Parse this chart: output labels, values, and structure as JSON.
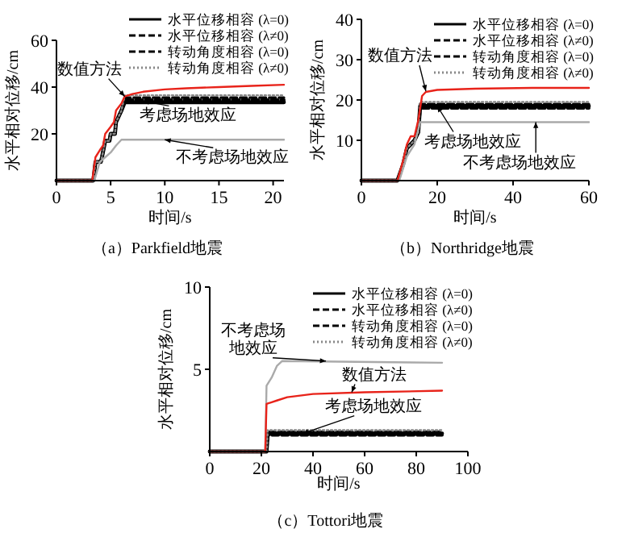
{
  "chart_data": [
    {
      "type": "line",
      "title": "（a）Parkfield地震",
      "xlabel": "时间/s",
      "ylabel": "水平相对位移/cm",
      "xlim": [
        0,
        21
      ],
      "xticks": [
        0,
        5,
        10,
        15,
        20
      ],
      "ylim": [
        0,
        60
      ],
      "yticks": [
        20,
        40,
        60
      ],
      "legend": "top right",
      "series": [
        {
          "name": "水平位移相容 (λ=0)",
          "color": "#000000",
          "line_style": "solid",
          "x": [
            0,
            3.4,
            3.6,
            4.1,
            4.2,
            4.5,
            4.9,
            5.0,
            5.4,
            5.5,
            6.0,
            6.3,
            21
          ],
          "values": [
            0,
            0,
            8,
            8,
            10,
            17,
            17,
            20,
            20,
            25,
            30,
            33.5,
            33.5
          ]
        },
        {
          "name": "水平位移相容 (λ≠0)",
          "color": "#000000",
          "line_style": "dashed",
          "x": [
            0,
            3.4,
            3.6,
            4.1,
            4.2,
            4.5,
            4.9,
            5.0,
            5.4,
            5.5,
            6.0,
            6.3,
            21
          ],
          "values": [
            0,
            0,
            8,
            8,
            10,
            17,
            17,
            20,
            20,
            25,
            30,
            34.5,
            34.5
          ]
        },
        {
          "name": "转动角度相容 (λ=0)",
          "color": "#000000",
          "line_style": "dashed",
          "x": [
            0,
            3.4,
            3.6,
            4.1,
            4.2,
            4.5,
            4.9,
            5.0,
            5.4,
            5.5,
            6.0,
            6.3,
            21
          ],
          "values": [
            0,
            0,
            8,
            8,
            10,
            17,
            17,
            20,
            20,
            25,
            30,
            35.5,
            35.5
          ]
        },
        {
          "name": "转动角度相容 (λ≠0)",
          "color": "#888888",
          "line_style": "dotted",
          "x": [
            0,
            3.4,
            3.6,
            4.1,
            4.2,
            4.5,
            4.9,
            5.0,
            5.4,
            5.5,
            6.0,
            6.3,
            21
          ],
          "values": [
            0,
            0,
            8,
            8,
            10,
            17,
            17,
            20,
            20,
            25,
            30,
            36.5,
            36.5
          ]
        },
        {
          "color": "#aaaaaa",
          "line_style": "solid",
          "x": [
            0,
            3.5,
            4,
            4.5,
            5,
            5.5,
            6,
            21
          ],
          "values": [
            0,
            0,
            8,
            10,
            12,
            15,
            17.5,
            17.5
          ]
        },
        {
          "color": "#e8231a",
          "line_style": "solid",
          "x": [
            0,
            3.3,
            3.6,
            4,
            4.3,
            4.5,
            5,
            5.3,
            5.5,
            6,
            6.3,
            7,
            8,
            10,
            12,
            15,
            18,
            21
          ],
          "values": [
            0,
            0,
            10,
            13,
            15,
            20,
            23,
            25,
            30,
            33,
            36,
            37,
            38,
            39,
            39.5,
            40,
            40.5,
            41
          ]
        }
      ],
      "annotations": [
        {
          "text": "数值方法",
          "x": 6.3,
          "y": 36
        },
        {
          "text": "考虑场地效应",
          "x": 8,
          "y": 34
        },
        {
          "text": "不考虑场地效应",
          "x": 10,
          "y": 17.5
        }
      ]
    },
    {
      "type": "line",
      "title": "（b）Northridge地震",
      "xlabel": "时间/s",
      "ylabel": "水平相对位移/cm",
      "xlim": [
        0,
        60
      ],
      "xticks": [
        0,
        20,
        40,
        60
      ],
      "ylim": [
        0,
        40
      ],
      "yticks": [
        10,
        20,
        30,
        40
      ],
      "legend": "top right",
      "series": [
        {
          "name": "水平位移相容 (λ=0)",
          "color": "#000000",
          "line_style": "solid",
          "x": [
            0,
            9.5,
            11,
            12,
            13,
            14,
            15,
            15.5,
            60
          ],
          "values": [
            0,
            0,
            4,
            8,
            9,
            10,
            12,
            18.5,
            18.5
          ]
        },
        {
          "name": "水平位移相容 (λ≠0)",
          "color": "#000000",
          "line_style": "dashed",
          "x": [
            0,
            9.5,
            11,
            12,
            13,
            14,
            15,
            15.5,
            60
          ],
          "values": [
            0,
            0,
            4,
            8,
            9,
            10,
            12,
            18,
            18
          ]
        },
        {
          "name": "转动角度相容 (λ=0)",
          "color": "#000000",
          "line_style": "dashed",
          "x": [
            0,
            9.5,
            11,
            12,
            13,
            14,
            15,
            15.5,
            60
          ],
          "values": [
            0,
            0,
            4,
            8,
            9,
            10,
            12,
            19,
            19
          ]
        },
        {
          "name": "转动角度相容 (λ≠0)",
          "color": "#888888",
          "line_style": "dotted",
          "x": [
            0,
            9.5,
            11,
            12,
            13,
            14,
            15,
            15.5,
            60
          ],
          "values": [
            0,
            0,
            4,
            8,
            9,
            10,
            12,
            19.5,
            19.5
          ]
        },
        {
          "color": "#aaaaaa",
          "line_style": "solid",
          "x": [
            0,
            10,
            12,
            14,
            15.5,
            60
          ],
          "values": [
            0,
            0,
            6,
            9,
            14.5,
            14.5
          ]
        },
        {
          "color": "#e8231a",
          "line_style": "solid",
          "x": [
            0,
            9.5,
            11,
            12,
            13,
            14,
            15,
            16,
            17,
            20,
            30,
            45,
            60
          ],
          "values": [
            0,
            0,
            5,
            9,
            11,
            11,
            15,
            21,
            22,
            22.5,
            22.8,
            23,
            23
          ]
        }
      ],
      "annotations": [
        {
          "text": "数值方法",
          "x": 17,
          "y": 22.2
        },
        {
          "text": "考虑场地效应",
          "x": 20,
          "y": 18.5
        },
        {
          "text": "不考虑场地效应",
          "x": 46,
          "y": 14.5
        }
      ]
    },
    {
      "type": "line",
      "title": "（c）Tottori地震",
      "xlabel": "时间/s",
      "ylabel": "水平相对位移/cm",
      "xlim": [
        0,
        100
      ],
      "xticks": [
        0,
        20,
        40,
        60,
        80,
        100
      ],
      "ylim": [
        0,
        10
      ],
      "yticks": [
        5,
        10
      ],
      "legend": "top right",
      "series": [
        {
          "name": "水平位移相容 (λ=0)",
          "color": "#000000",
          "line_style": "solid",
          "x": [
            0,
            22,
            22.5,
            90
          ],
          "values": [
            0,
            0,
            1.1,
            1.1
          ]
        },
        {
          "name": "水平位移相容 (λ≠0)",
          "color": "#000000",
          "line_style": "dashed",
          "x": [
            0,
            22,
            22.5,
            90
          ],
          "values": [
            0,
            0,
            1.0,
            1.0
          ]
        },
        {
          "name": "转动角度相容 (λ=0)",
          "color": "#000000",
          "line_style": "dashed",
          "x": [
            0,
            22,
            22.5,
            90
          ],
          "values": [
            0,
            0,
            1.2,
            1.2
          ]
        },
        {
          "name": "转动角度相容 (λ≠0)",
          "color": "#888888",
          "line_style": "dotted",
          "x": [
            0,
            22,
            22.5,
            90
          ],
          "values": [
            0,
            0,
            1.3,
            1.3
          ]
        },
        {
          "color": "#aaaaaa",
          "line_style": "solid",
          "x": [
            0,
            21.5,
            22,
            24,
            26,
            28,
            90
          ],
          "values": [
            0,
            0,
            4,
            4.5,
            5.2,
            5.5,
            5.4
          ]
        },
        {
          "color": "#e8231a",
          "line_style": "solid",
          "x": [
            0,
            21.5,
            22,
            24,
            26,
            30,
            40,
            60,
            90
          ],
          "values": [
            0,
            0,
            2.9,
            3.0,
            3.1,
            3.3,
            3.5,
            3.6,
            3.7
          ]
        }
      ],
      "annotations": [
        {
          "text": "不考虑场地效应",
          "x": 45,
          "y": 5.5
        },
        {
          "text": "数值方法",
          "x": 55,
          "y": 3.6
        },
        {
          "text": "考虑场地效应",
          "x": 36,
          "y": 1.1
        }
      ]
    }
  ]
}
